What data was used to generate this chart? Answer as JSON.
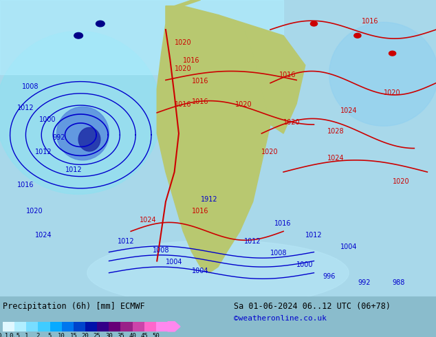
{
  "title_left": "Precipitation (6h) [mm] ECMWF",
  "title_right": "Sa 01-06-2024 06..12 UTC (06+78)",
  "credit": "©weatheronline.co.uk",
  "colorbar_levels": [
    0.1,
    0.5,
    1,
    2,
    5,
    10,
    15,
    20,
    25,
    30,
    35,
    40,
    45,
    50
  ],
  "colorbar_colors": [
    "#e0f8ff",
    "#b0eeff",
    "#78ddff",
    "#40ccff",
    "#08aaff",
    "#0077ee",
    "#0044cc",
    "#0011aa",
    "#330088",
    "#660077",
    "#992288",
    "#cc44aa",
    "#ff66cc",
    "#ff88ee"
  ],
  "bg_color": "#a0d8e8",
  "land_color": "#c8d890",
  "border_color": "#808080",
  "slp_color_red": "#cc0000",
  "slp_color_blue": "#0000cc",
  "fig_width": 6.34,
  "fig_height": 4.9,
  "dpi": 100
}
